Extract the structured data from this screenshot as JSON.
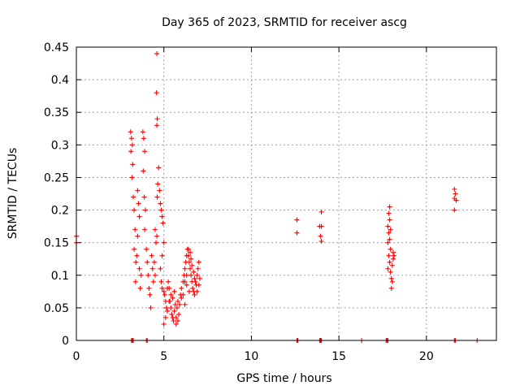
{
  "chart_data": {
    "type": "scatter",
    "title": "Day 365 of 2023, SRMTID for receiver ascg",
    "xlabel": "GPS time / hours",
    "ylabel": "SRMTID / TECUs",
    "xlim": [
      0,
      24
    ],
    "ylim": [
      0,
      0.45
    ],
    "grid": true,
    "marker": "+",
    "color": "#ff0000",
    "x_ticks": [
      0,
      5,
      10,
      15,
      20
    ],
    "x_tick_labels": [
      "0",
      "5",
      "10",
      "15",
      "20"
    ],
    "y_ticks": [
      0,
      0.05,
      0.1,
      0.15,
      0.2,
      0.25,
      0.3,
      0.35,
      0.4,
      0.45
    ],
    "y_tick_labels": [
      "0",
      "0.05",
      "0.1",
      "0.15",
      "0.2",
      "0.25",
      "0.3",
      "0.35",
      "0.4",
      "0.45"
    ],
    "series": [
      {
        "name": "SRMTID",
        "points": [
          [
            0.0,
            0.16
          ],
          [
            0.0,
            0.15
          ],
          [
            3.1,
            0.32
          ],
          [
            3.15,
            0.31
          ],
          [
            3.2,
            0.3
          ],
          [
            3.12,
            0.29
          ],
          [
            3.22,
            0.27
          ],
          [
            3.18,
            0.25
          ],
          [
            3.25,
            0.22
          ],
          [
            3.3,
            0.2
          ],
          [
            3.35,
            0.17
          ],
          [
            3.3,
            0.14
          ],
          [
            3.4,
            0.12
          ],
          [
            3.38,
            0.09
          ],
          [
            3.5,
            0.23
          ],
          [
            3.55,
            0.21
          ],
          [
            3.6,
            0.19
          ],
          [
            3.5,
            0.16
          ],
          [
            3.45,
            0.13
          ],
          [
            3.6,
            0.11
          ],
          [
            3.7,
            0.1
          ],
          [
            3.65,
            0.08
          ],
          [
            3.8,
            0.32
          ],
          [
            3.85,
            0.31
          ],
          [
            3.9,
            0.29
          ],
          [
            3.82,
            0.26
          ],
          [
            3.88,
            0.22
          ],
          [
            3.95,
            0.2
          ],
          [
            3.9,
            0.17
          ],
          [
            4.0,
            0.14
          ],
          [
            4.05,
            0.12
          ],
          [
            4.1,
            0.1
          ],
          [
            4.15,
            0.08
          ],
          [
            4.2,
            0.07
          ],
          [
            4.25,
            0.05
          ],
          [
            4.3,
            0.13
          ],
          [
            4.35,
            0.11
          ],
          [
            4.4,
            0.09
          ],
          [
            4.45,
            0.12
          ],
          [
            4.5,
            0.1
          ],
          [
            4.55,
            0.15
          ],
          [
            4.5,
            0.17
          ],
          [
            4.6,
            0.16
          ],
          [
            4.62,
            0.22
          ],
          [
            4.65,
            0.24
          ],
          [
            4.6,
            0.44
          ],
          [
            4.58,
            0.38
          ],
          [
            4.62,
            0.34
          ],
          [
            4.6,
            0.33
          ],
          [
            4.7,
            0.265
          ],
          [
            4.75,
            0.23
          ],
          [
            4.8,
            0.21
          ],
          [
            4.85,
            0.2
          ],
          [
            4.9,
            0.19
          ],
          [
            4.95,
            0.18
          ],
          [
            5.0,
            0.15
          ],
          [
            4.9,
            0.13
          ],
          [
            4.8,
            0.11
          ],
          [
            4.85,
            0.09
          ],
          [
            4.9,
            0.08
          ],
          [
            5.0,
            0.075
          ],
          [
            5.05,
            0.07
          ],
          [
            5.1,
            0.06
          ],
          [
            5.15,
            0.05
          ],
          [
            5.2,
            0.045
          ],
          [
            5.1,
            0.035
          ],
          [
            5.0,
            0.025
          ],
          [
            5.25,
            0.09
          ],
          [
            5.3,
            0.08
          ],
          [
            5.35,
            0.06
          ],
          [
            5.4,
            0.05
          ],
          [
            5.45,
            0.04
          ],
          [
            5.5,
            0.035
          ],
          [
            5.55,
            0.03
          ],
          [
            5.6,
            0.045
          ],
          [
            5.65,
            0.055
          ],
          [
            5.7,
            0.035
          ],
          [
            5.75,
            0.05
          ],
          [
            5.8,
            0.06
          ],
          [
            5.85,
            0.04
          ],
          [
            5.9,
            0.055
          ],
          [
            5.95,
            0.07
          ],
          [
            5.5,
            0.065
          ],
          [
            5.6,
            0.075
          ],
          [
            5.4,
            0.07
          ],
          [
            5.3,
            0.06
          ],
          [
            5.2,
            0.08
          ],
          [
            5.7,
            0.025
          ],
          [
            5.8,
            0.03
          ],
          [
            6.0,
            0.08
          ],
          [
            6.1,
            0.09
          ],
          [
            6.15,
            0.1
          ],
          [
            6.2,
            0.11
          ],
          [
            6.25,
            0.12
          ],
          [
            6.3,
            0.13
          ],
          [
            6.35,
            0.14
          ],
          [
            6.4,
            0.13
          ],
          [
            6.45,
            0.12
          ],
          [
            6.5,
            0.11
          ],
          [
            6.55,
            0.1
          ],
          [
            6.6,
            0.09
          ],
          [
            6.65,
            0.08
          ],
          [
            6.7,
            0.075
          ],
          [
            6.75,
            0.07
          ],
          [
            6.4,
            0.14
          ],
          [
            6.5,
            0.135
          ],
          [
            6.55,
            0.125
          ],
          [
            6.6,
            0.115
          ],
          [
            6.7,
            0.105
          ],
          [
            6.75,
            0.095
          ],
          [
            6.8,
            0.09
          ],
          [
            6.85,
            0.085
          ],
          [
            6.9,
            0.1
          ],
          [
            6.95,
            0.11
          ],
          [
            7.0,
            0.12
          ],
          [
            6.9,
            0.075
          ],
          [
            7.0,
            0.085
          ],
          [
            7.05,
            0.095
          ],
          [
            6.2,
            0.09
          ],
          [
            6.3,
            0.085
          ],
          [
            6.1,
            0.07
          ],
          [
            6.0,
            0.065
          ],
          [
            6.2,
            0.055
          ],
          [
            6.3,
            0.1
          ],
          [
            6.45,
            0.075
          ],
          [
            12.6,
            0.185
          ],
          [
            12.6,
            0.165
          ],
          [
            14.0,
            0.197
          ],
          [
            13.9,
            0.175
          ],
          [
            14.0,
            0.175
          ],
          [
            13.95,
            0.16
          ],
          [
            14.0,
            0.152
          ],
          [
            17.9,
            0.205
          ],
          [
            17.85,
            0.195
          ],
          [
            17.9,
            0.185
          ],
          [
            17.8,
            0.175
          ],
          [
            17.95,
            0.17
          ],
          [
            17.85,
            0.165
          ],
          [
            17.9,
            0.155
          ],
          [
            17.8,
            0.15
          ],
          [
            17.95,
            0.14
          ],
          [
            17.85,
            0.13
          ],
          [
            17.9,
            0.12
          ],
          [
            17.8,
            0.11
          ],
          [
            17.95,
            0.105
          ],
          [
            18.0,
            0.095
          ],
          [
            18.05,
            0.09
          ],
          [
            18.0,
            0.08
          ],
          [
            18.1,
            0.125
          ],
          [
            18.15,
            0.13
          ],
          [
            18.05,
            0.115
          ],
          [
            18.1,
            0.135
          ],
          [
            21.6,
            0.232
          ],
          [
            21.65,
            0.225
          ],
          [
            21.6,
            0.218
          ],
          [
            21.7,
            0.215
          ],
          [
            21.6,
            0.2
          ],
          [
            3.15,
            0.0
          ],
          [
            3.2,
            0.0
          ],
          [
            3.25,
            0.0
          ],
          [
            4.0,
            0.0
          ],
          [
            4.05,
            0.0
          ],
          [
            12.6,
            0.0
          ],
          [
            12.65,
            0.0
          ],
          [
            13.9,
            0.0
          ],
          [
            13.95,
            0.0
          ],
          [
            14.0,
            0.0
          ],
          [
            16.3,
            0.0
          ],
          [
            17.7,
            0.0
          ],
          [
            17.75,
            0.0
          ],
          [
            17.8,
            0.0
          ],
          [
            21.6,
            0.0
          ],
          [
            21.65,
            0.0
          ],
          [
            22.9,
            0.0
          ]
        ]
      }
    ]
  }
}
